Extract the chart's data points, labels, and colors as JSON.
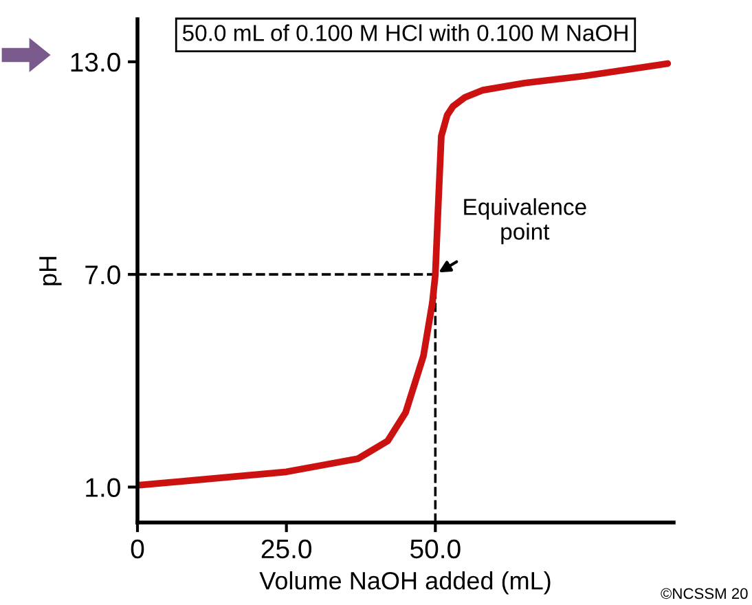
{
  "chart_data": {
    "type": "line",
    "title": "50.0 mL of 0.100 M HCl with 0.100 M NaOH",
    "xlabel": "Volume NaOH added (mL)",
    "ylabel": "pH",
    "x": [
      0,
      10,
      25,
      37,
      42,
      45,
      48,
      49.5,
      50,
      50.5,
      51,
      52,
      53,
      55,
      58,
      65,
      75,
      89
    ],
    "series": [
      {
        "color": "#cc1111",
        "values": [
          1.05,
          1.2,
          1.43,
          1.8,
          2.3,
          3.1,
          4.7,
          6.2,
          7.0,
          9.0,
          10.9,
          11.5,
          11.75,
          12.0,
          12.2,
          12.4,
          12.6,
          12.95
        ]
      }
    ],
    "xlim": [
      0,
      90
    ],
    "ylim": [
      0,
      14.2
    ],
    "xticks": [
      0,
      {
        "value": 25,
        "label": "25.0"
      },
      {
        "value": 50,
        "label": "50.0"
      }
    ],
    "yticks": [
      {
        "value": 1,
        "label": "1.0"
      },
      {
        "value": 7,
        "label": "7.0"
      },
      {
        "value": 13,
        "label": "13.0"
      }
    ],
    "ref_lines": [
      {
        "axis": "y",
        "value": 7,
        "line_style": "dashed",
        "color": "#000000"
      },
      {
        "axis": "x",
        "value": 50,
        "line_style": "dashed",
        "color": "#000000"
      }
    ],
    "annotations": [
      {
        "text": "Equivalence\npoint",
        "x": 50,
        "y": 7
      },
      "©NCSSM 20"
    ],
    "grid": false,
    "marker": "none",
    "line_style": "solid"
  }
}
